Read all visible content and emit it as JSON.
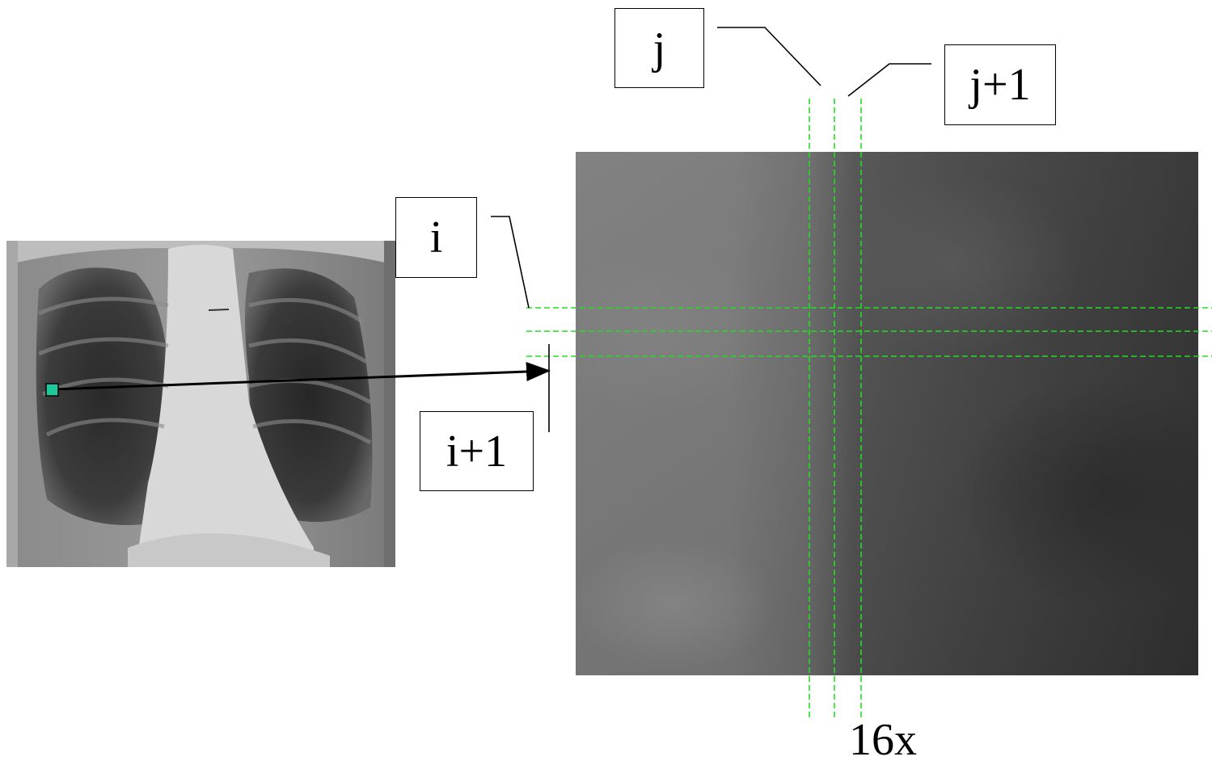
{
  "labels": {
    "i": "i",
    "i_plus_1": "i+1",
    "j": "j",
    "j_plus_1": "j+1",
    "magnification": "16x"
  },
  "colors": {
    "grid_line": "#22dd22",
    "marker": "#1fc79a",
    "arrow": "#000000"
  }
}
